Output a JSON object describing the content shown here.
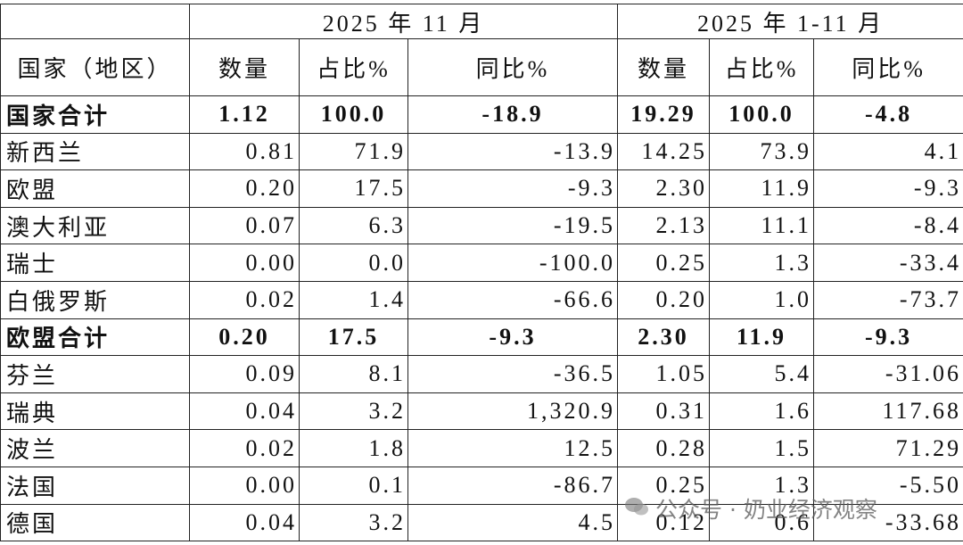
{
  "table": {
    "header_groups": [
      "2025 年 11 月",
      "2025 年 1-11 月"
    ],
    "columns": [
      "国家（地区）",
      "数量",
      "占比%",
      "同比%",
      "数量",
      "占比%",
      "同比%"
    ],
    "rows": [
      {
        "bold": true,
        "cells": [
          "国家合计",
          "1.12",
          "100.0",
          "-18.9",
          "19.29",
          "100.0",
          "-4.8"
        ]
      },
      {
        "cells": [
          "新西兰",
          "0.81",
          "71.9",
          "-13.9",
          "14.25",
          "73.9",
          "4.1"
        ]
      },
      {
        "cells": [
          "欧盟",
          "0.20",
          "17.5",
          "-9.3",
          "2.30",
          "11.9",
          "-9.3"
        ]
      },
      {
        "cells": [
          "澳大利亚",
          "0.07",
          "6.3",
          "-19.5",
          "2.13",
          "11.1",
          "-8.4"
        ]
      },
      {
        "cells": [
          "瑞士",
          "0.00",
          "0.0",
          "-100.0",
          "0.25",
          "1.3",
          "-33.4"
        ]
      },
      {
        "cells": [
          "白俄罗斯",
          "0.02",
          "1.4",
          "-66.6",
          "0.20",
          "1.0",
          "-73.7"
        ]
      },
      {
        "bold": true,
        "cells": [
          "欧盟合计",
          "0.20",
          "17.5",
          "-9.3",
          "2.30",
          "11.9",
          "-9.3"
        ]
      },
      {
        "cells": [
          "芬兰",
          "0.09",
          "8.1",
          "-36.5",
          "1.05",
          "5.4",
          "-31.06"
        ]
      },
      {
        "cells": [
          "瑞典",
          "0.04",
          "3.2",
          "1,320.9",
          "0.31",
          "1.6",
          "117.68"
        ]
      },
      {
        "cells": [
          "波兰",
          "0.02",
          "1.8",
          "12.5",
          "0.28",
          "1.5",
          "71.29"
        ]
      },
      {
        "cells": [
          "法国",
          "0.00",
          "0.1",
          "-86.7",
          "0.25",
          "1.3",
          "-5.50"
        ]
      },
      {
        "cells": [
          "德国",
          "0.04",
          "3.2",
          "4.5",
          "0.12",
          "0.6",
          "-33.68"
        ]
      }
    ],
    "watermark": "公众号 · 奶业经济观察"
  }
}
